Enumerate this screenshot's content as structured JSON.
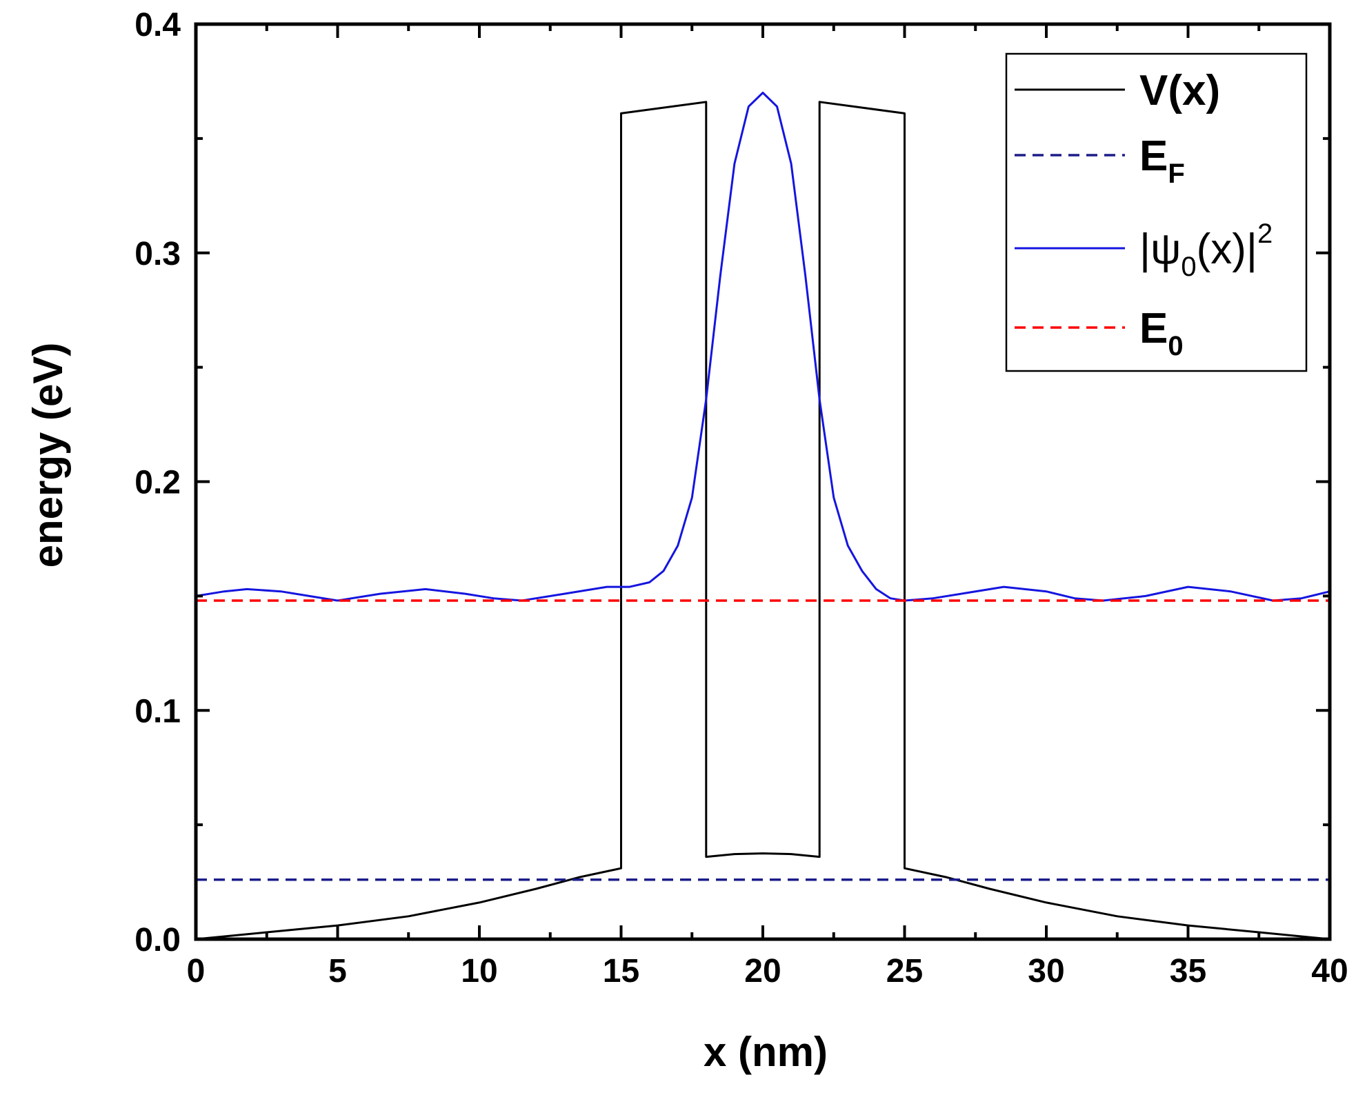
{
  "chart_data": {
    "type": "line",
    "title": "",
    "xlabel": "x (nm)",
    "ylabel": "energy (eV)",
    "xlim": [
      0,
      40
    ],
    "ylim": [
      0.0,
      0.4
    ],
    "grid": false,
    "legend_position": "top-right",
    "x_ticks": [
      {
        "value": 0,
        "label": "0"
      },
      {
        "value": 5,
        "label": "5"
      },
      {
        "value": 10,
        "label": "10"
      },
      {
        "value": 15,
        "label": "15"
      },
      {
        "value": 20,
        "label": "20"
      },
      {
        "value": 25,
        "label": "25"
      },
      {
        "value": 30,
        "label": "30"
      },
      {
        "value": 35,
        "label": "35"
      },
      {
        "value": 40,
        "label": "40"
      }
    ],
    "y_ticks": [
      {
        "value": 0.0,
        "label": "0.0"
      },
      {
        "value": 0.1,
        "label": "0.1"
      },
      {
        "value": 0.2,
        "label": "0.2"
      },
      {
        "value": 0.3,
        "label": "0.3"
      },
      {
        "value": 0.4,
        "label": "0.4"
      }
    ],
    "series": [
      {
        "name": "V(x)",
        "legend_label": "V(x)",
        "color": "#000000",
        "style": "solid",
        "x": [
          0,
          2.5,
          5,
          7.5,
          10,
          12,
          13.5,
          15,
          15,
          18,
          18,
          19,
          20,
          21,
          22,
          22,
          25,
          25,
          26.5,
          28,
          30,
          32.5,
          35,
          37.5,
          40
        ],
        "y": [
          0.0,
          0.003,
          0.006,
          0.01,
          0.016,
          0.022,
          0.027,
          0.031,
          0.361,
          0.366,
          0.036,
          0.0372,
          0.0375,
          0.0372,
          0.036,
          0.366,
          0.361,
          0.031,
          0.027,
          0.022,
          0.016,
          0.01,
          0.006,
          0.003,
          0.0
        ]
      },
      {
        "name": "E_F",
        "legend_label": "E",
        "legend_sub": "F",
        "color": "#1c1c8a",
        "style": "dashed",
        "x": [
          0,
          40
        ],
        "y": [
          0.026,
          0.026
        ]
      },
      {
        "name": "|psi_0(x)|^2",
        "legend_label": "|ψ",
        "legend_sub": "0",
        "legend_rest": "(x)|",
        "legend_sup": "2",
        "color": "#1515e0",
        "style": "solid",
        "x": [
          0,
          1,
          1.8,
          3,
          4,
          5,
          6.5,
          8.1,
          9.5,
          10.5,
          11.5,
          13,
          14.5,
          15.3,
          16,
          16.5,
          17,
          17.5,
          18,
          18.5,
          19,
          19.5,
          20,
          20.5,
          21,
          21.5,
          22,
          22.5,
          23,
          23.5,
          24,
          24.5,
          25,
          26,
          27,
          28.5,
          30,
          31,
          32,
          33.5,
          35,
          36.5,
          38,
          39,
          40
        ],
        "y": [
          0.15,
          0.152,
          0.153,
          0.152,
          0.15,
          0.148,
          0.151,
          0.153,
          0.151,
          0.149,
          0.148,
          0.151,
          0.154,
          0.154,
          0.156,
          0.161,
          0.172,
          0.193,
          0.236,
          0.29,
          0.339,
          0.364,
          0.37,
          0.364,
          0.339,
          0.29,
          0.236,
          0.193,
          0.172,
          0.161,
          0.153,
          0.149,
          0.148,
          0.149,
          0.151,
          0.154,
          0.152,
          0.149,
          0.148,
          0.15,
          0.154,
          0.152,
          0.148,
          0.149,
          0.152
        ]
      },
      {
        "name": "E_0",
        "legend_label": "E",
        "legend_sub": "0",
        "color": "#ff0000",
        "style": "dashed",
        "x": [
          0,
          40
        ],
        "y": [
          0.148,
          0.148
        ]
      }
    ]
  }
}
